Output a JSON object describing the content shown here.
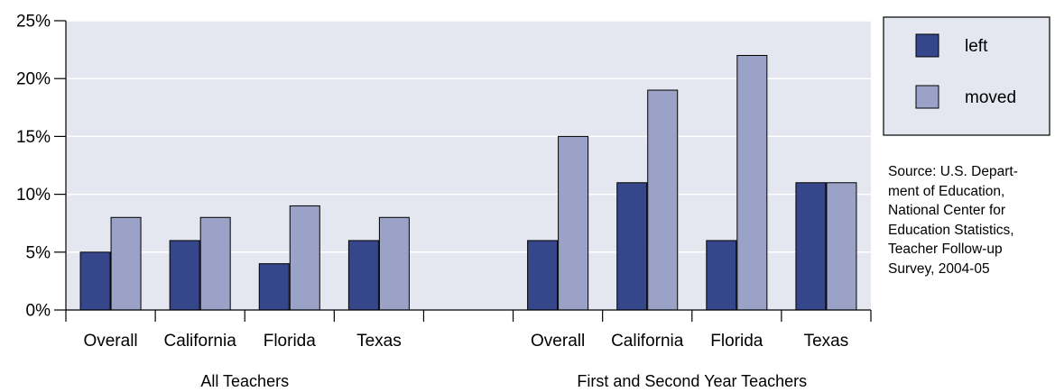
{
  "chart_data": {
    "type": "bar",
    "ylim": [
      0,
      25
    ],
    "y_ticks": [
      "0%",
      "5%",
      "10%",
      "15%",
      "20%",
      "25%"
    ],
    "grid": true,
    "legend_position": "top-right",
    "colors": {
      "left": "#36468a",
      "moved": "#9aa3c7",
      "plot_bg": "#e4e6f0",
      "legend_bg": "#e4e6f0"
    },
    "series": [
      {
        "name": "left",
        "values": [
          5,
          6,
          4,
          6,
          6,
          11,
          6,
          11
        ]
      },
      {
        "name": "moved",
        "values": [
          8,
          8,
          9,
          8,
          15,
          19,
          22,
          11
        ]
      }
    ],
    "groups": [
      {
        "label": "All Teachers",
        "categories": [
          "Overall",
          "California",
          "Florida",
          "Texas"
        ]
      },
      {
        "label": "First and Second Year Teachers",
        "categories": [
          "Overall",
          "California",
          "Florida",
          "Texas"
        ]
      }
    ]
  },
  "source_note": "Source: U.S. Depart-\nment of Education,\nNational Center for\nEducation Statistics,\nTeacher Follow-up\nSurvey, 2004-05"
}
